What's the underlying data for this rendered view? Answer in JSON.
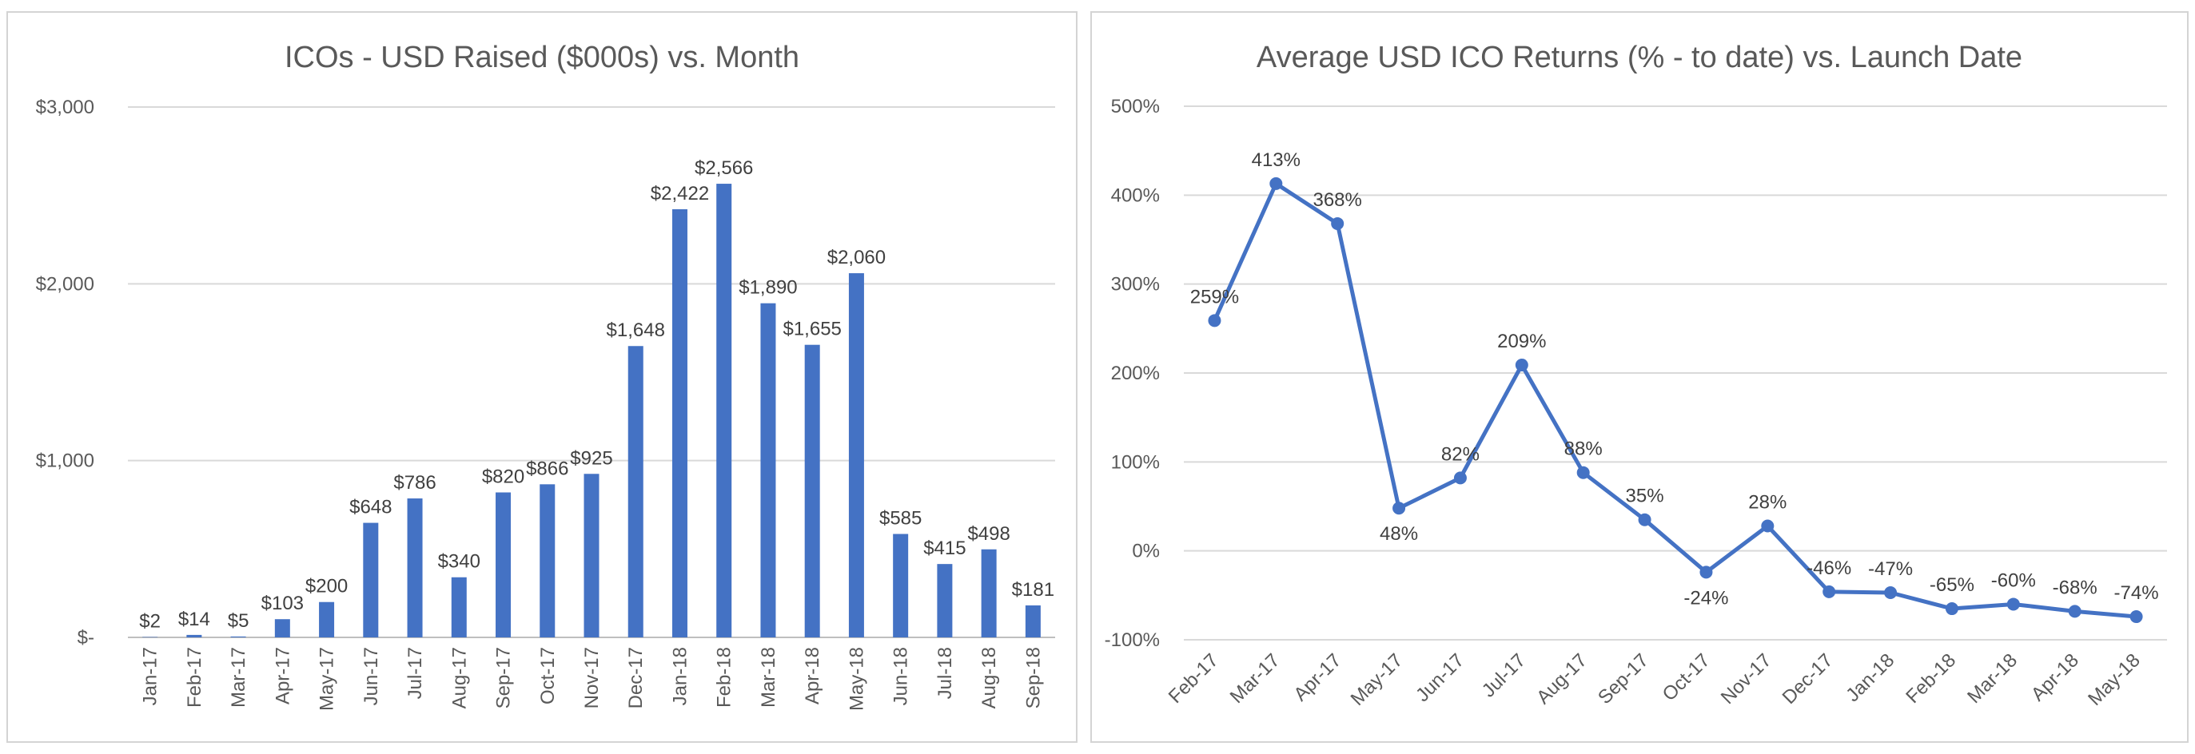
{
  "colors": {
    "series": "#4472C4",
    "gridline": "#d9d9d9",
    "text": "#595959"
  },
  "chart_data": [
    {
      "type": "bar",
      "title": "ICOs - USD Raised ($000s) vs. Month",
      "xlabel": "",
      "ylabel": "",
      "ylim": [
        0,
        3000
      ],
      "yticks": [
        0,
        1000,
        2000,
        3000
      ],
      "ytick_labels": [
        "$-",
        "$1,000",
        "$2,000",
        "$3,000"
      ],
      "grid": true,
      "categories": [
        "Jan-17",
        "Feb-17",
        "Mar-17",
        "Apr-17",
        "May-17",
        "Jun-17",
        "Jul-17",
        "Aug-17",
        "Sep-17",
        "Oct-17",
        "Nov-17",
        "Dec-17",
        "Jan-18",
        "Feb-18",
        "Mar-18",
        "Apr-18",
        "May-18",
        "Jun-18",
        "Jul-18",
        "Aug-18",
        "Sep-18"
      ],
      "values": [
        2,
        14,
        5,
        103,
        200,
        648,
        786,
        340,
        820,
        866,
        925,
        1648,
        2422,
        2566,
        1890,
        1655,
        2060,
        585,
        415,
        498,
        181
      ],
      "data_labels": [
        "$2",
        "$14",
        "$5",
        "$103",
        "$200",
        "$648",
        "$786",
        "$340",
        "$820",
        "$866",
        "$925",
        "$1,648",
        "$2,422",
        "$2,566",
        "$1,890",
        "$1,655",
        "$2,060",
        "$585",
        "$415",
        "$498",
        "$181"
      ]
    },
    {
      "type": "line",
      "title": "Average USD ICO Returns (% - to date) vs. Launch Date",
      "xlabel": "",
      "ylabel": "",
      "ylim": [
        -100,
        500
      ],
      "yticks": [
        -100,
        0,
        100,
        200,
        300,
        400,
        500
      ],
      "ytick_labels": [
        "-100%",
        "0%",
        "100%",
        "200%",
        "300%",
        "400%",
        "500%"
      ],
      "grid": true,
      "categories": [
        "Feb-17",
        "Mar-17",
        "Apr-17",
        "May-17",
        "Jun-17",
        "Jul-17",
        "Aug-17",
        "Sep-17",
        "Oct-17",
        "Nov-17",
        "Dec-17",
        "Jan-18",
        "Feb-18",
        "Mar-18",
        "Apr-18",
        "May-18"
      ],
      "values": [
        259,
        413,
        368,
        48,
        82,
        209,
        88,
        35,
        -24,
        28,
        -46,
        -47,
        -65,
        -60,
        -68,
        -74
      ],
      "data_labels": [
        "259%",
        "413%",
        "368%",
        "48%",
        "82%",
        "209%",
        "88%",
        "35%",
        "-24%",
        "28%",
        "-46%",
        "-47%",
        "-65%",
        "-60%",
        "-68%",
        "-74%"
      ]
    }
  ]
}
